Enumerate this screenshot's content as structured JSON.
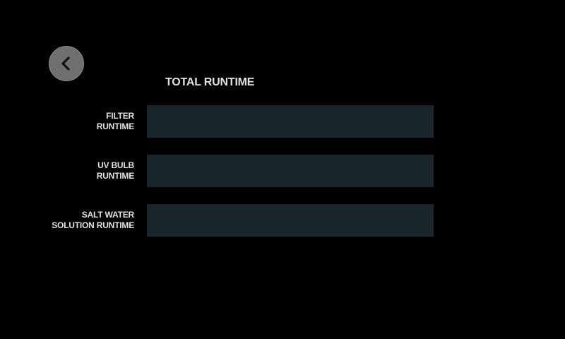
{
  "header": {
    "back_icon": "chevron-left-icon",
    "title": "TOTAL RUNTIME"
  },
  "rows": [
    {
      "label_line1": "FILTER",
      "label_line2": "RUNTIME",
      "value": ""
    },
    {
      "label_line1": "UV BULB",
      "label_line2": "RUNTIME",
      "value": ""
    },
    {
      "label_line1": "SALT WATER",
      "label_line2": "SOLUTION RUNTIME",
      "value": ""
    }
  ],
  "colors": {
    "background": "#000000",
    "back_button": "#6f6f6f",
    "value_box": "#18252b",
    "text": "#e2e2e2"
  }
}
